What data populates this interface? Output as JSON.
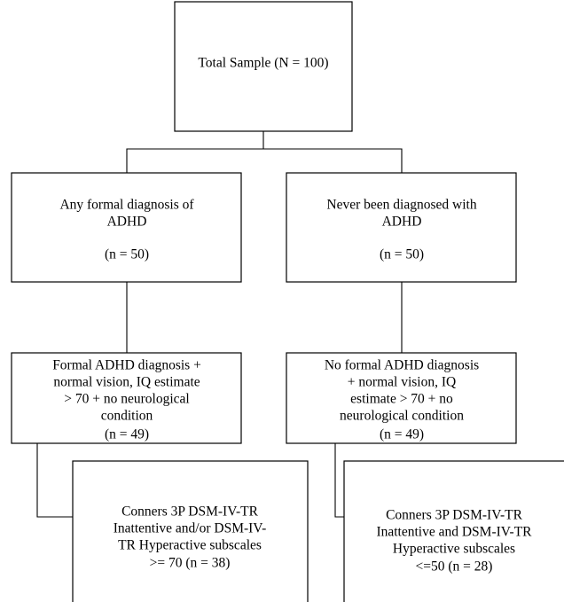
{
  "nodes": [
    {
      "lines": [
        "Total Sample (N = 100)"
      ]
    },
    {
      "lines": [
        "Any formal diagnosis of",
        "ADHD",
        "(n = 50)"
      ]
    },
    {
      "lines": [
        "Never been diagnosed with",
        "ADHD",
        "(n = 50)"
      ]
    },
    {
      "lines": [
        "Formal ADHD diagnosis +",
        "normal vision, IQ estimate",
        "> 70 + no neurological",
        "condition",
        "(n = 49)"
      ]
    },
    {
      "lines": [
        "No formal ADHD diagnosis",
        "+ normal vision, IQ",
        "estimate > 70 + no",
        "neurological condition",
        "(n = 49)"
      ]
    },
    {
      "lines": [
        "Conners 3P DSM-IV-TR",
        "Inattentive and/or DSM-IV-",
        "TR Hyperactive subscales",
        ">= 70 (n = 38)"
      ]
    },
    {
      "lines": [
        "Conners 3P DSM-IV-TR",
        "Inattentive and DSM-IV-TR",
        "Hyperactive subscales",
        "<=50 (n = 28)"
      ]
    }
  ]
}
